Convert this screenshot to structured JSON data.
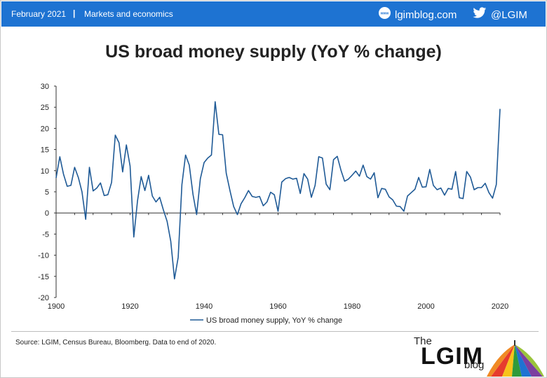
{
  "header": {
    "date": "February 2021",
    "separator": "|",
    "section": "Markets and economics",
    "site_icon": "globe-www-icon",
    "site": "lgimblog.com",
    "twitter_icon": "twitter-bird-icon",
    "twitter": "@LGIM"
  },
  "colors": {
    "header_bg": "#1e73d2",
    "series_line": "#1f5a96"
  },
  "chart_data": {
    "type": "line",
    "title": "US broad money supply (YoY % change)",
    "xlabel": "",
    "ylabel": "",
    "xlim": [
      1900,
      2020
    ],
    "ylim": [
      -20,
      30
    ],
    "x_ticks": [
      "1900",
      "1920",
      "1940",
      "1960",
      "1980",
      "2000",
      "2020"
    ],
    "y_ticks": [
      "30",
      "25",
      "20",
      "15",
      "10",
      "5",
      "0",
      "-5",
      "-10",
      "-15",
      "-20"
    ],
    "grid": false,
    "legend_position": "bottom",
    "series": [
      {
        "name": "US broad money supply, YoY % change",
        "x": [
          1900,
          1901,
          1902,
          1903,
          1904,
          1905,
          1906,
          1907,
          1908,
          1909,
          1910,
          1911,
          1912,
          1913,
          1914,
          1915,
          1916,
          1917,
          1918,
          1919,
          1920,
          1921,
          1922,
          1923,
          1924,
          1925,
          1926,
          1927,
          1928,
          1929,
          1930,
          1931,
          1932,
          1933,
          1934,
          1935,
          1936,
          1937,
          1938,
          1939,
          1940,
          1941,
          1942,
          1943,
          1944,
          1945,
          1946,
          1947,
          1948,
          1949,
          1950,
          1951,
          1952,
          1953,
          1954,
          1955,
          1956,
          1957,
          1958,
          1959,
          1960,
          1961,
          1962,
          1963,
          1964,
          1965,
          1966,
          1967,
          1968,
          1969,
          1970,
          1971,
          1972,
          1973,
          1974,
          1975,
          1976,
          1977,
          1978,
          1979,
          1980,
          1981,
          1982,
          1983,
          1984,
          1985,
          1986,
          1987,
          1988,
          1989,
          1990,
          1991,
          1992,
          1993,
          1994,
          1995,
          1996,
          1997,
          1998,
          1999,
          2000,
          2001,
          2002,
          2003,
          2004,
          2005,
          2006,
          2007,
          2008,
          2009,
          2010,
          2011,
          2012,
          2013,
          2014,
          2015,
          2016,
          2017,
          2018,
          2019,
          2020
        ],
        "values": [
          8.3,
          13.3,
          9.2,
          6.3,
          6.5,
          10.8,
          8.4,
          5.0,
          -1.5,
          10.8,
          5.2,
          5.9,
          7.1,
          4.1,
          4.3,
          7.2,
          18.4,
          16.6,
          9.7,
          16.1,
          11.1,
          -5.7,
          2.9,
          8.6,
          5.3,
          8.9,
          4.0,
          2.6,
          3.7,
          0.7,
          -2.0,
          -6.7,
          -15.6,
          -10.5,
          6.7,
          13.7,
          11.3,
          4.4,
          -0.4,
          8.1,
          11.9,
          13.0,
          13.7,
          26.3,
          18.6,
          18.5,
          9.4,
          5.3,
          1.5,
          -0.4,
          2.2,
          3.6,
          5.3,
          3.9,
          3.7,
          3.9,
          1.7,
          2.6,
          4.9,
          4.3,
          0.4,
          7.3,
          8.1,
          8.4,
          8.0,
          8.2,
          4.6,
          9.3,
          8.0,
          3.7,
          6.5,
          13.3,
          13.0,
          6.8,
          5.5,
          12.6,
          13.4,
          10.1,
          7.5,
          8.0,
          8.9,
          9.9,
          8.7,
          11.3,
          8.6,
          8.0,
          9.5,
          3.6,
          5.8,
          5.6,
          3.8,
          3.1,
          1.6,
          1.5,
          0.4,
          4.0,
          4.8,
          5.6,
          8.4,
          6.1,
          6.2,
          10.3,
          6.5,
          5.5,
          5.9,
          4.2,
          5.8,
          5.6,
          9.8,
          3.6,
          3.4,
          9.8,
          8.5,
          5.5,
          6.0,
          6.0,
          7.0,
          4.8,
          3.5,
          6.7,
          24.6
        ]
      }
    ]
  },
  "footer": {
    "source": "Source: LGIM,  Census Bureau, Bloomberg. Data to end of 2020."
  },
  "logo": {
    "the": "The",
    "main": "LGIM",
    "blog": "blog",
    "icon": "umbrella-icon"
  }
}
